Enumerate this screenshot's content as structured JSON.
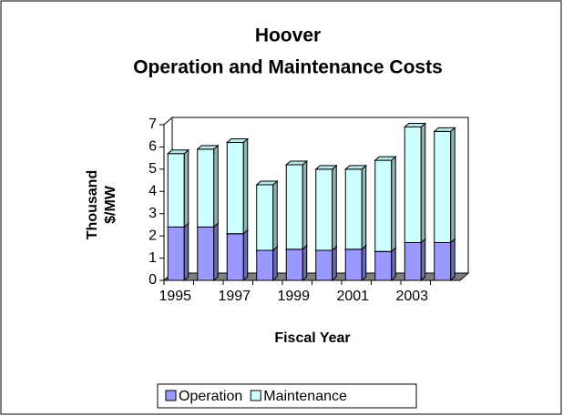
{
  "chart_data": {
    "type": "bar",
    "stacked": true,
    "three_d": true,
    "title": "Hoover",
    "subtitle": "Operation and Maintenance Costs",
    "ylabel": [
      "Thousand",
      "$/MW"
    ],
    "xlabel": "Fiscal Year",
    "categories": [
      1995,
      null,
      1997,
      null,
      1999,
      null,
      2001,
      null,
      2003,
      null
    ],
    "series": [
      {
        "name": "Operation",
        "color": "#9999ff",
        "values": [
          2.4,
          2.4,
          2.1,
          1.35,
          1.4,
          1.35,
          1.4,
          1.3,
          1.7,
          1.7
        ]
      },
      {
        "name": "Maintenance",
        "color": "#ccffff",
        "values": [
          3.3,
          3.5,
          4.1,
          2.95,
          3.8,
          3.65,
          3.6,
          4.1,
          5.2,
          5.0
        ]
      }
    ],
    "ylim": [
      0,
      7
    ],
    "yticks": [
      0,
      1,
      2,
      3,
      4,
      5,
      6,
      7
    ],
    "grid": false,
    "legend": "bottom"
  }
}
